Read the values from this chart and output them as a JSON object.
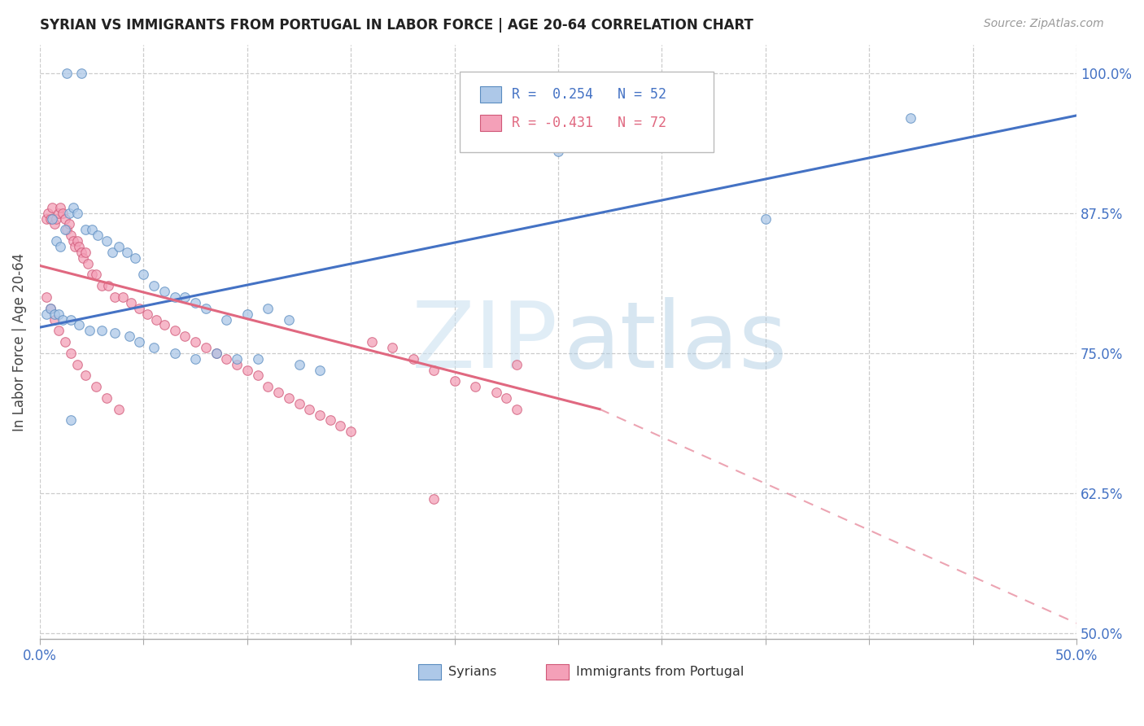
{
  "title": "SYRIAN VS IMMIGRANTS FROM PORTUGAL IN LABOR FORCE | AGE 20-64 CORRELATION CHART",
  "source": "Source: ZipAtlas.com",
  "ylabel": "In Labor Force | Age 20-64",
  "xlim": [
    0.0,
    0.5
  ],
  "ylim": [
    0.495,
    1.025
  ],
  "xticks": [
    0.0,
    0.05,
    0.1,
    0.15,
    0.2,
    0.25,
    0.3,
    0.35,
    0.4,
    0.45,
    0.5
  ],
  "xtick_labels": [
    "0.0%",
    "",
    "",
    "",
    "",
    "",
    "",
    "",
    "",
    "",
    "50.0%"
  ],
  "yticks": [
    0.5,
    0.625,
    0.75,
    0.875,
    1.0
  ],
  "ytick_labels": [
    "50.0%",
    "62.5%",
    "75.0%",
    "87.5%",
    "100.0%"
  ],
  "legend_r1": "R =  0.254",
  "legend_n1": "N = 52",
  "legend_r2": "R = -0.431",
  "legend_n2": "N = 72",
  "color_syrians": "#adc8e8",
  "color_portugal": "#f4a0b8",
  "color_trend_syrians": "#4472c4",
  "color_trend_portugal": "#e06880",
  "edge_syrians": "#5a8cc0",
  "edge_portugal": "#d05878",
  "trend_syr_x0": 0.0,
  "trend_syr_y0": 0.773,
  "trend_syr_x1": 0.5,
  "trend_syr_y1": 0.962,
  "trend_por_solid_x0": 0.0,
  "trend_por_solid_y0": 0.828,
  "trend_por_solid_x1": 0.27,
  "trend_por_solid_y1": 0.7,
  "trend_por_dash_x0": 0.27,
  "trend_por_dash_y0": 0.7,
  "trend_por_dash_x1": 0.5,
  "trend_por_dash_y1": 0.509,
  "syrians_x": [
    0.013,
    0.02,
    0.006,
    0.008,
    0.01,
    0.012,
    0.014,
    0.016,
    0.018,
    0.022,
    0.025,
    0.028,
    0.032,
    0.035,
    0.038,
    0.042,
    0.046,
    0.05,
    0.055,
    0.06,
    0.065,
    0.07,
    0.075,
    0.08,
    0.09,
    0.1,
    0.11,
    0.12,
    0.003,
    0.005,
    0.007,
    0.009,
    0.011,
    0.015,
    0.019,
    0.024,
    0.03,
    0.036,
    0.043,
    0.048,
    0.055,
    0.065,
    0.075,
    0.085,
    0.095,
    0.105,
    0.125,
    0.135,
    0.25,
    0.35,
    0.42,
    0.015
  ],
  "syrians_y": [
    1.0,
    1.0,
    0.87,
    0.85,
    0.845,
    0.86,
    0.875,
    0.88,
    0.875,
    0.86,
    0.86,
    0.855,
    0.85,
    0.84,
    0.845,
    0.84,
    0.835,
    0.82,
    0.81,
    0.805,
    0.8,
    0.8,
    0.795,
    0.79,
    0.78,
    0.785,
    0.79,
    0.78,
    0.785,
    0.79,
    0.785,
    0.785,
    0.78,
    0.78,
    0.775,
    0.77,
    0.77,
    0.768,
    0.765,
    0.76,
    0.755,
    0.75,
    0.745,
    0.75,
    0.745,
    0.745,
    0.74,
    0.735,
    0.93,
    0.87,
    0.96,
    0.69
  ],
  "portugal_x": [
    0.003,
    0.004,
    0.005,
    0.006,
    0.007,
    0.008,
    0.009,
    0.01,
    0.011,
    0.012,
    0.013,
    0.014,
    0.015,
    0.016,
    0.017,
    0.018,
    0.019,
    0.02,
    0.021,
    0.022,
    0.023,
    0.025,
    0.027,
    0.03,
    0.033,
    0.036,
    0.04,
    0.044,
    0.048,
    0.052,
    0.056,
    0.06,
    0.065,
    0.07,
    0.075,
    0.08,
    0.085,
    0.09,
    0.095,
    0.1,
    0.105,
    0.11,
    0.115,
    0.12,
    0.125,
    0.13,
    0.135,
    0.14,
    0.145,
    0.15,
    0.16,
    0.17,
    0.18,
    0.19,
    0.2,
    0.21,
    0.22,
    0.225,
    0.23,
    0.003,
    0.005,
    0.007,
    0.009,
    0.012,
    0.015,
    0.018,
    0.022,
    0.027,
    0.032,
    0.038,
    0.23,
    0.19
  ],
  "portugal_y": [
    0.87,
    0.875,
    0.87,
    0.88,
    0.865,
    0.87,
    0.875,
    0.88,
    0.875,
    0.87,
    0.86,
    0.865,
    0.855,
    0.85,
    0.845,
    0.85,
    0.845,
    0.84,
    0.835,
    0.84,
    0.83,
    0.82,
    0.82,
    0.81,
    0.81,
    0.8,
    0.8,
    0.795,
    0.79,
    0.785,
    0.78,
    0.775,
    0.77,
    0.765,
    0.76,
    0.755,
    0.75,
    0.745,
    0.74,
    0.735,
    0.73,
    0.72,
    0.715,
    0.71,
    0.705,
    0.7,
    0.695,
    0.69,
    0.685,
    0.68,
    0.76,
    0.755,
    0.745,
    0.735,
    0.725,
    0.72,
    0.715,
    0.71,
    0.7,
    0.8,
    0.79,
    0.78,
    0.77,
    0.76,
    0.75,
    0.74,
    0.73,
    0.72,
    0.71,
    0.7,
    0.74,
    0.62
  ]
}
